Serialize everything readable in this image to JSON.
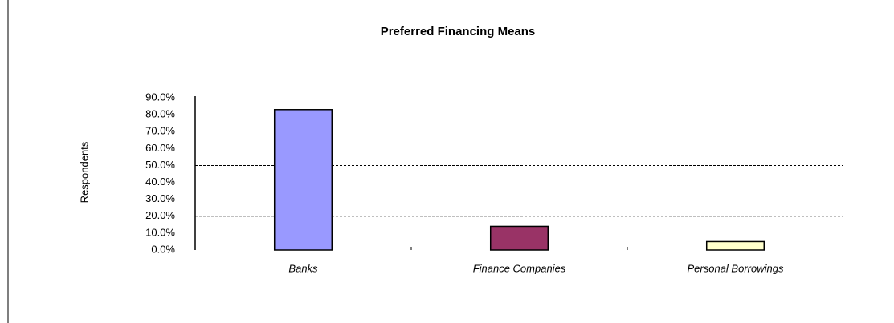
{
  "chart_data": {
    "type": "bar",
    "title": "Preferred Financing Means",
    "y_label": "Respondents",
    "categories": [
      "Banks",
      "Finance Companies",
      "Personal Borrowings"
    ],
    "values": [
      83,
      14,
      5
    ],
    "colors": [
      "#9999ff",
      "#993366",
      "#ffffcc"
    ],
    "ylim": [
      0,
      90
    ],
    "yticks": [
      {
        "value": 0,
        "label": "0.0%"
      },
      {
        "value": 10,
        "label": "10.0%"
      },
      {
        "value": 20,
        "label": "20.0%"
      },
      {
        "value": 30,
        "label": "30.0%"
      },
      {
        "value": 40,
        "label": "40.0%"
      },
      {
        "value": 50,
        "label": "50.0%"
      },
      {
        "value": 60,
        "label": "60.0%"
      },
      {
        "value": 70,
        "label": "70.0%"
      },
      {
        "value": 80,
        "label": "80.0%"
      },
      {
        "value": 90,
        "label": "90.0%"
      }
    ],
    "gridlines": [
      20,
      50
    ]
  }
}
